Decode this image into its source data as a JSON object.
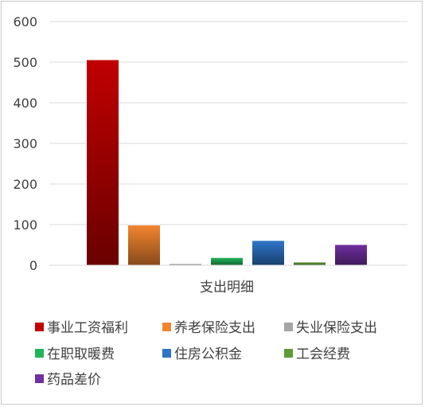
{
  "chart_data": {
    "type": "bar",
    "title": "",
    "xlabel": "支出明细",
    "ylabel": "",
    "ylim": [
      0,
      600
    ],
    "yticks": [
      0,
      100,
      200,
      300,
      400,
      500,
      600
    ],
    "grid": true,
    "legend_position": "bottom",
    "categories": [
      "支出明细"
    ],
    "series": [
      {
        "name": "事业工资福利",
        "values": [
          505
        ],
        "color": "#c00000"
      },
      {
        "name": "养老保险支出",
        "values": [
          98
        ],
        "color": "#f4852f"
      },
      {
        "name": "失业保险支出",
        "values": [
          3
        ],
        "color": "#a5a5a5"
      },
      {
        "name": "在职取暖费",
        "values": [
          18
        ],
        "color": "#21b45a"
      },
      {
        "name": "住房公积金",
        "values": [
          60
        ],
        "color": "#2e75c8"
      },
      {
        "name": "工会经费",
        "values": [
          7
        ],
        "color": "#5e9c35"
      },
      {
        "name": "药品差价",
        "values": [
          50
        ],
        "color": "#7030a0"
      }
    ]
  }
}
